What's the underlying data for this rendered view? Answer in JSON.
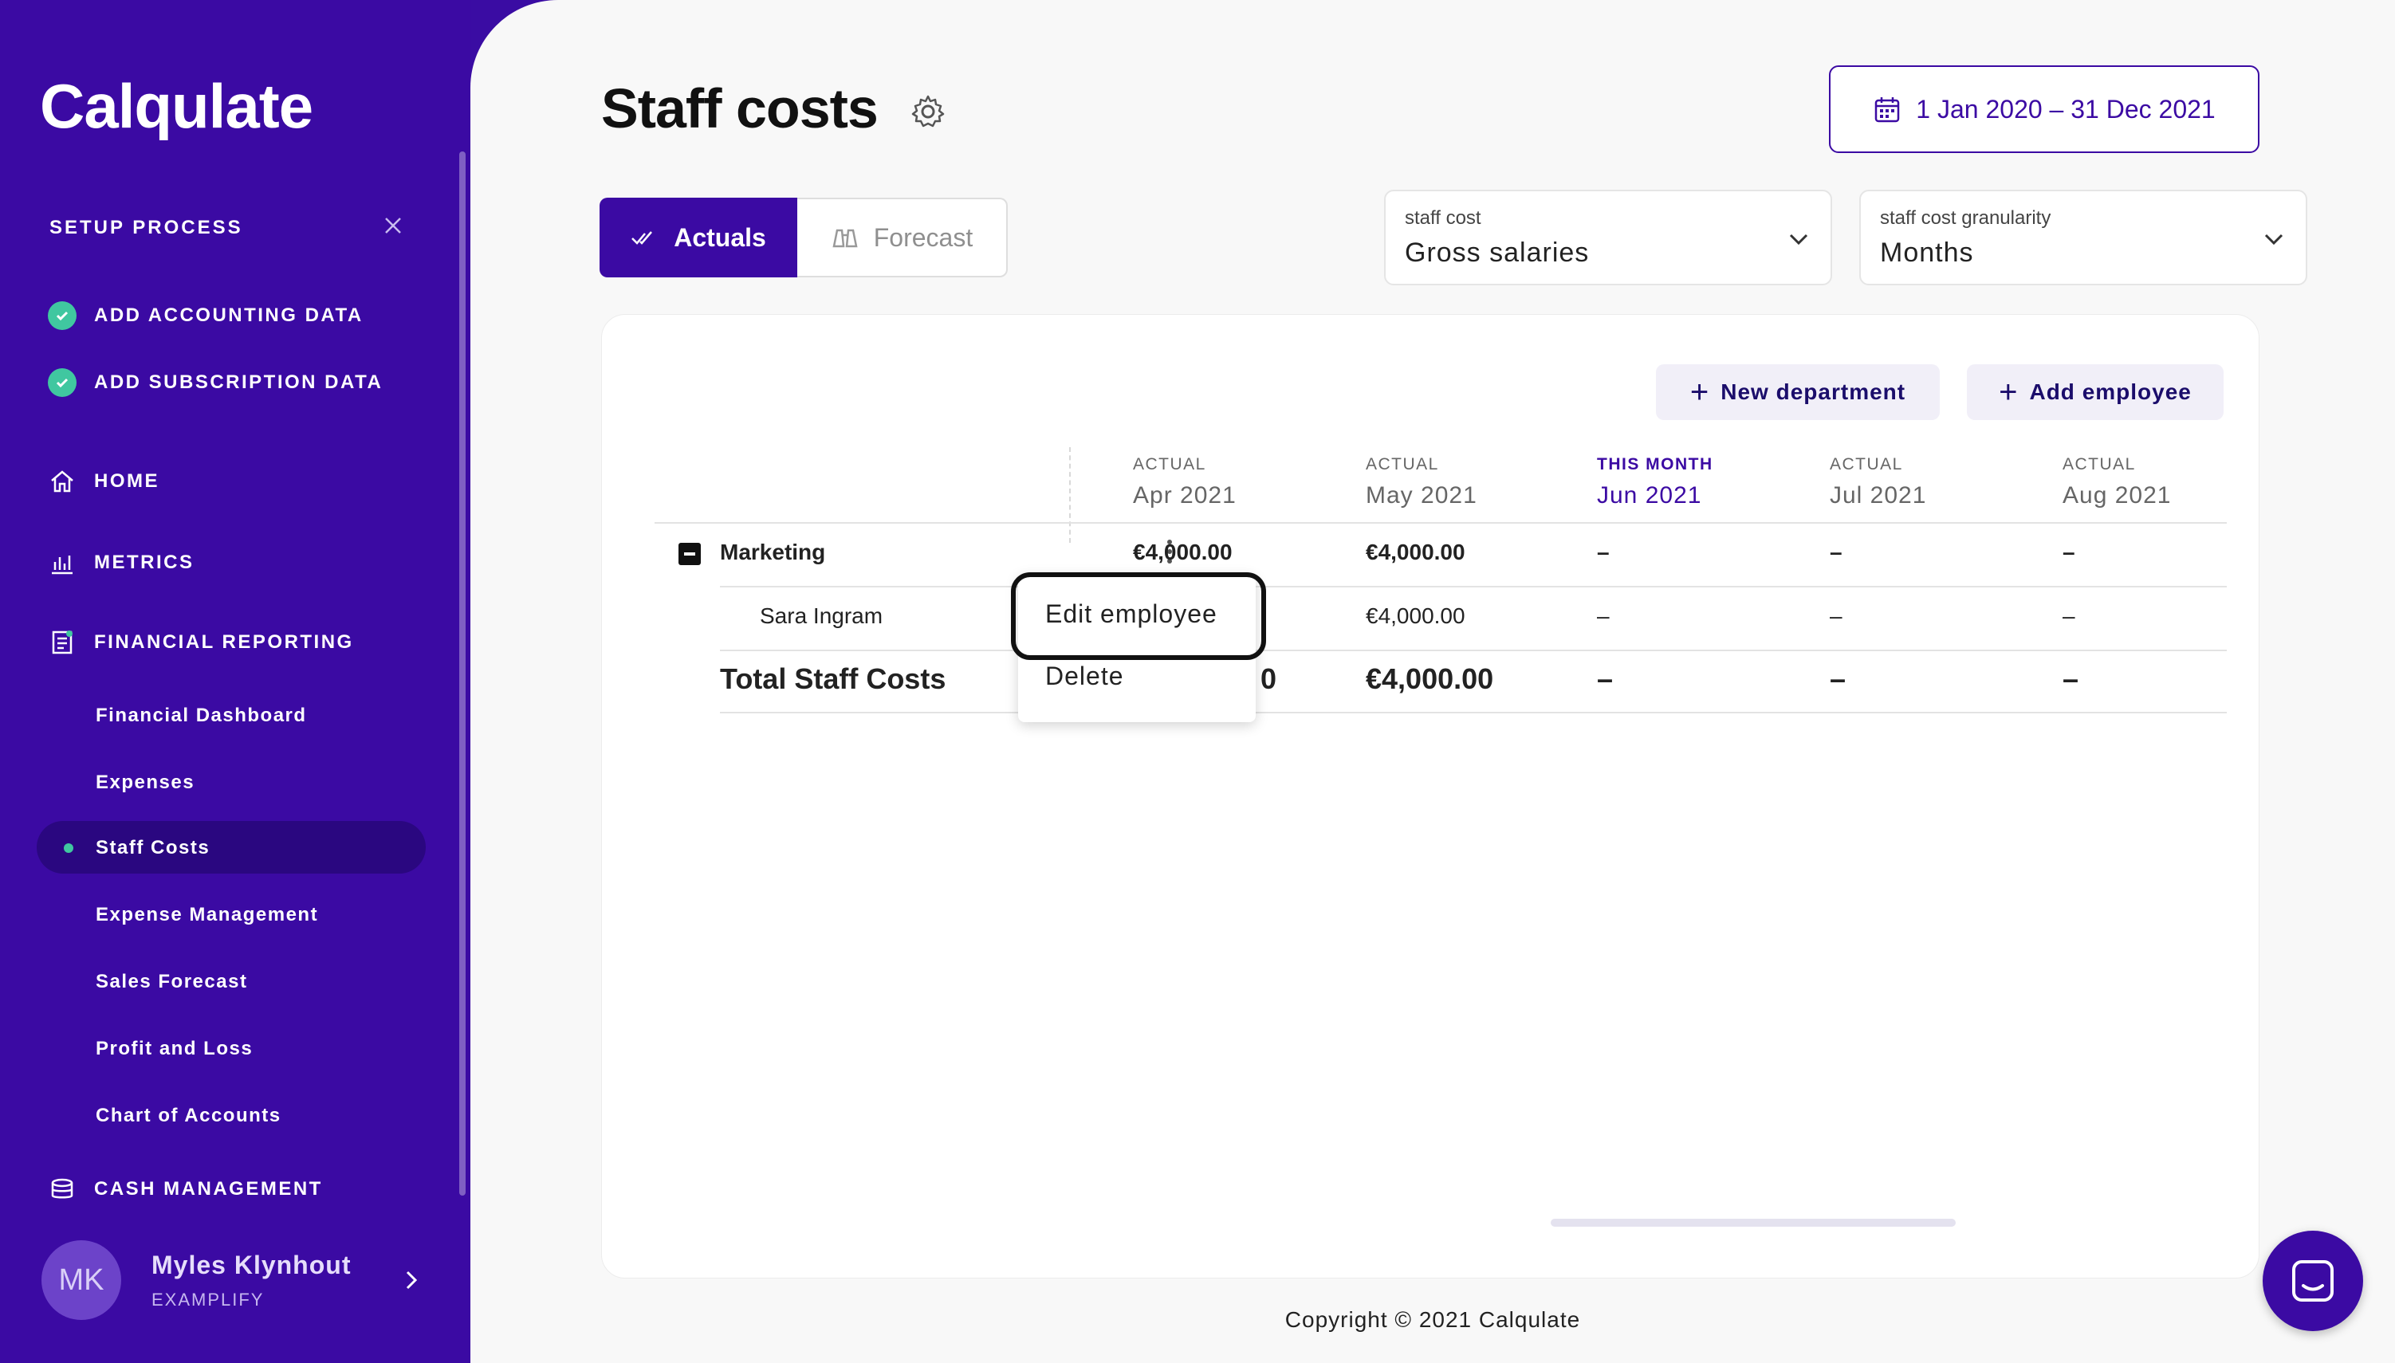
{
  "app": {
    "logo": "Calqulate"
  },
  "sidebar": {
    "setup": {
      "title": "SETUP PROCESS",
      "items": [
        {
          "label": "ADD ACCOUNTING DATA",
          "done": true
        },
        {
          "label": "ADD SUBSCRIPTION DATA",
          "done": true
        }
      ]
    },
    "nav": {
      "home": "HOME",
      "metrics": "METRICS",
      "financial_reporting": "FINANCIAL REPORTING",
      "sub": [
        "Financial Dashboard",
        "Expenses",
        "Staff Costs",
        "Expense Management",
        "Sales Forecast",
        "Profit and Loss",
        "Chart of Accounts"
      ],
      "active": "Staff Costs",
      "cash_management": "CASH MANAGEMENT"
    },
    "user": {
      "initials": "MK",
      "name": "Myles Klynhout",
      "org": "EXAMPLIFY"
    }
  },
  "page": {
    "title": "Staff costs",
    "date_range": "1 Jan 2020 – 31 Dec 2021",
    "toggle": {
      "actuals": "Actuals",
      "forecast": "Forecast",
      "selected": "Actuals"
    },
    "filters": {
      "staff_cost": {
        "label": "staff cost",
        "value": "Gross salaries"
      },
      "granularity": {
        "label": "staff cost granularity",
        "value": "Months"
      }
    },
    "buttons": {
      "new_department": "New department",
      "add_employee": "Add employee"
    }
  },
  "table": {
    "columns": [
      {
        "kind": "ACTUAL",
        "month": "Apr 2021"
      },
      {
        "kind": "ACTUAL",
        "month": "May 2021"
      },
      {
        "kind": "THIS MONTH",
        "month": "Jun 2021"
      },
      {
        "kind": "ACTUAL",
        "month": "Jul 2021"
      },
      {
        "kind": "ACTUAL",
        "month": "Aug 2021"
      }
    ],
    "department": {
      "name": "Marketing",
      "values": [
        "€4,000.00",
        "€4,000.00",
        "–",
        "–",
        "–"
      ]
    },
    "employee": {
      "name": "Sara Ingram",
      "values": [
        "€4,000.00",
        "–",
        "–",
        "–"
      ]
    },
    "total": {
      "label": "Total Staff Costs",
      "values_partial": "0",
      "values": [
        "€4,000.00",
        "–",
        "–",
        "–"
      ]
    }
  },
  "context_menu": {
    "items": [
      "Edit employee",
      "Delete"
    ],
    "highlighted": "Edit employee"
  },
  "footer": {
    "copyright": "Copyright © 2021 Calqulate"
  },
  "colors": {
    "primary": "#3b0aa3",
    "success": "#40c7a0",
    "background": "#f8f8f8"
  }
}
